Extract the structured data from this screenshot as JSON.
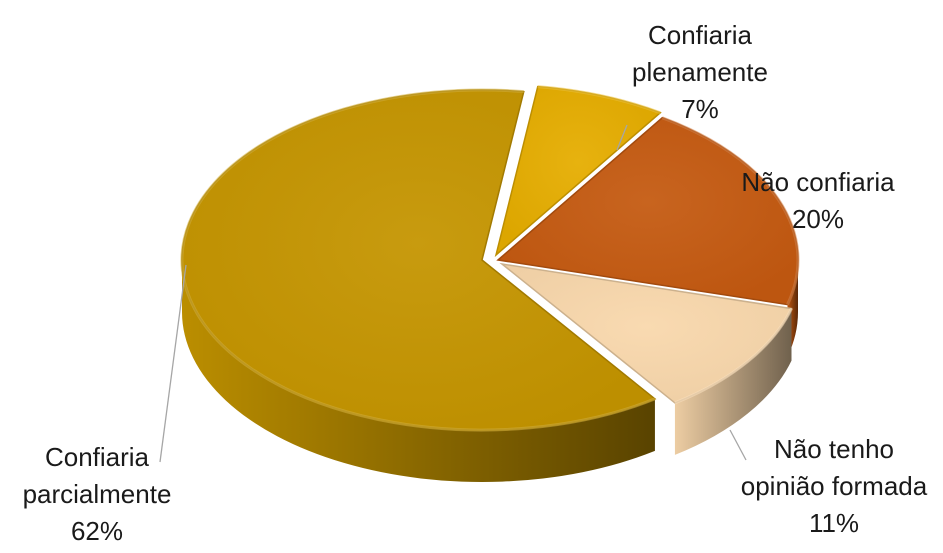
{
  "chart_data": {
    "type": "pie",
    "title": "",
    "series": [
      {
        "slices": [
          {
            "label_lines": [
              "Confiaria",
              "plenamente"
            ],
            "value": 7,
            "value_label": "7%",
            "color": "#E5AD00"
          },
          {
            "label_lines": [
              "Não confiaria"
            ],
            "value": 20,
            "value_label": "20%",
            "color": "#C55A11"
          },
          {
            "label_lines": [
              "Não tenho",
              "opinião formada"
            ],
            "value": 11,
            "value_label": "11%",
            "color": "#F9D8AC"
          },
          {
            "label_lines": [
              "Confiaria",
              "parcialmente"
            ],
            "value": 62,
            "value_label": "62%",
            "color": "#C59500"
          }
        ]
      }
    ],
    "legend": "none",
    "style": "3d-exploded"
  }
}
